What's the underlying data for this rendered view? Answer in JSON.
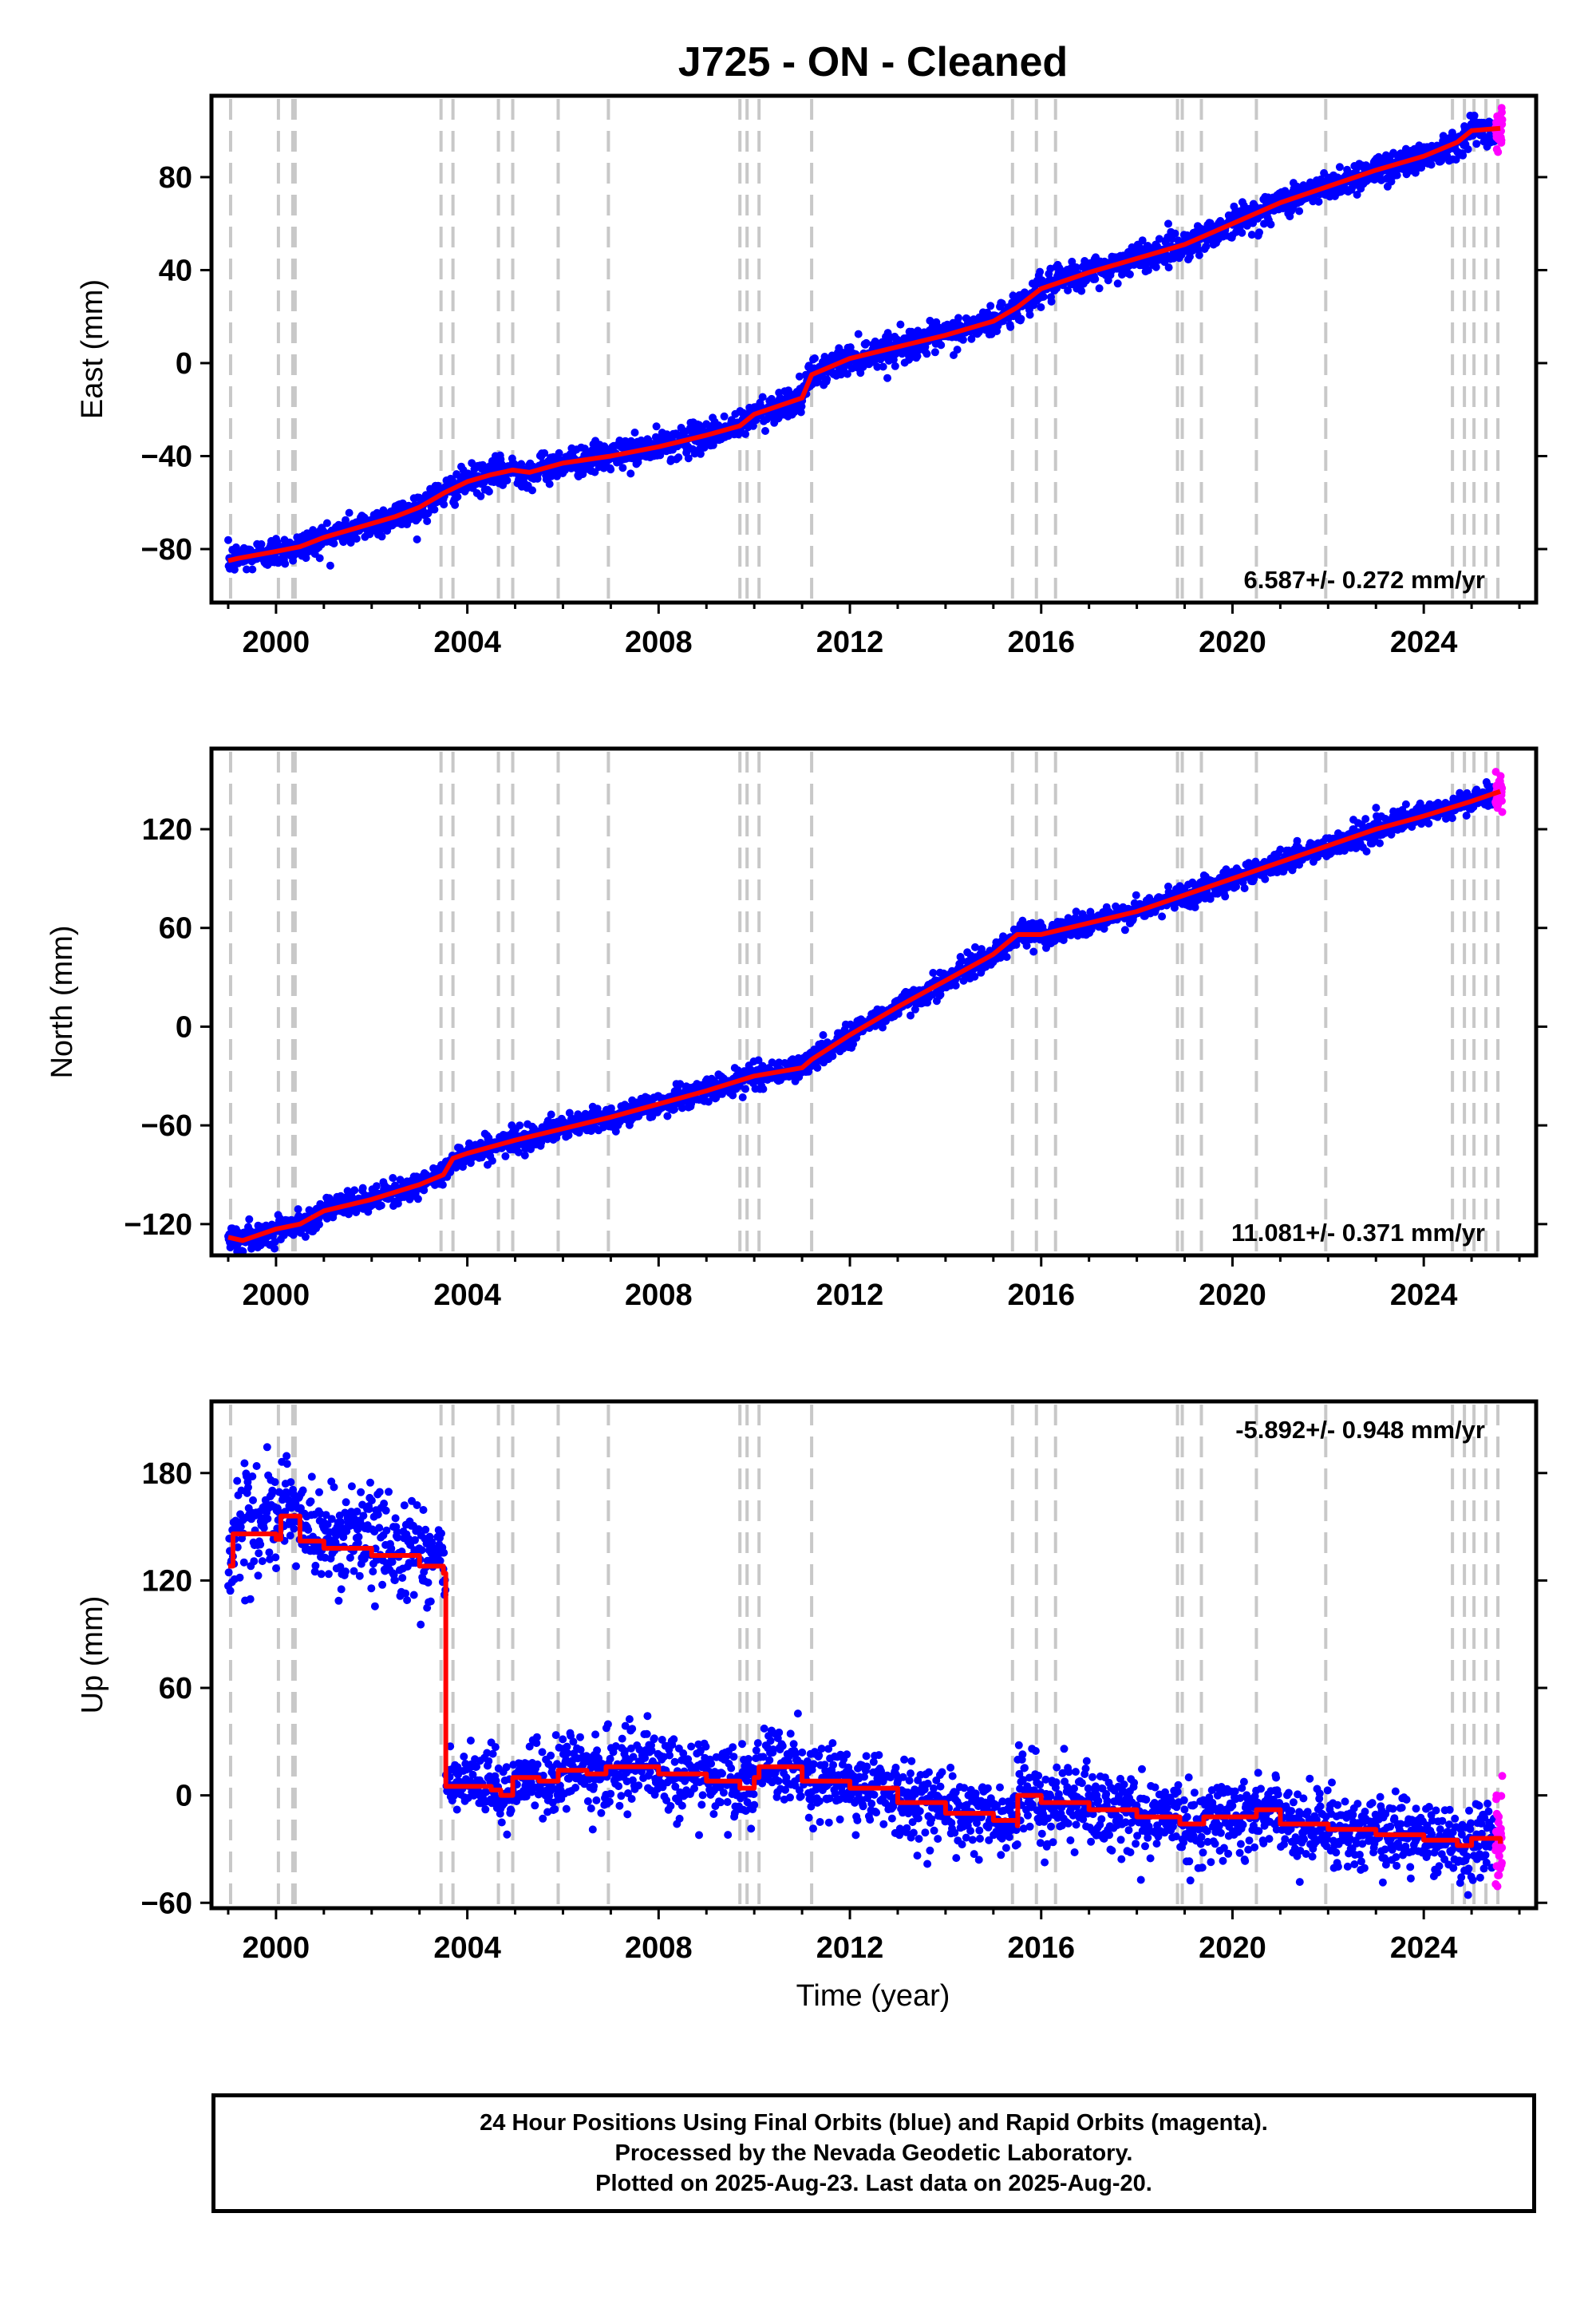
{
  "figure": {
    "title": "J725  - ON - Cleaned",
    "xlabel": "Time (year)"
  },
  "colors": {
    "final_orbits": "#0000ff",
    "rapid_orbits": "#ff00ff",
    "model": "#ff0000",
    "event_lines": "#c8c8c8",
    "frame": "#000000"
  },
  "footer": {
    "line1": "24 Hour Positions Using Final Orbits (blue) and Rapid Orbits (magenta).",
    "line2": "Processed by the Nevada Geodetic Laboratory.",
    "line3": "Plotted on 2025-Aug-23. Last data on 2025-Aug-20."
  },
  "chart_data": [
    {
      "type": "scatter",
      "title": "J725  - ON - Cleaned",
      "xlabel": "",
      "ylabel": "East (mm)",
      "xlim": [
        1998.65,
        2026.35
      ],
      "ylim": [
        -103,
        115
      ],
      "xticks": [
        2000,
        2004,
        2008,
        2012,
        2016,
        2020,
        2024
      ],
      "yticks": [
        -80,
        -40,
        0,
        40,
        80
      ],
      "annotation": "6.587+/- 0.272 mm/yr",
      "annotation_position": "bottom-right",
      "grid": false,
      "series": [
        {
          "name": "Final Orbits",
          "color": "#0000ff",
          "style": "points"
        },
        {
          "name": "Rapid Orbits",
          "color": "#ff00ff",
          "style": "points"
        },
        {
          "name": "Model",
          "color": "#ff0000",
          "style": "line",
          "x": [
            1999.0,
            1999.2,
            2000.0,
            2000.5,
            2001.0,
            2001.5,
            2002.0,
            2002.5,
            2003.0,
            2003.5,
            2004.0,
            2004.5,
            2004.95,
            2005.3,
            2006.0,
            2007.0,
            2008.0,
            2009.0,
            2009.7,
            2010.0,
            2011.0,
            2011.2,
            2012.0,
            2013.0,
            2014.0,
            2015.0,
            2015.5,
            2016.0,
            2017.0,
            2018.0,
            2019.0,
            2020.0,
            2021.0,
            2022.0,
            2023.0,
            2024.0,
            2024.7,
            2025.0,
            2025.6
          ],
          "y": [
            -85,
            -84,
            -81,
            -79,
            -75,
            -72,
            -69,
            -66,
            -62,
            -56,
            -51,
            -48,
            -46,
            -47,
            -43,
            -40,
            -36,
            -31,
            -27,
            -22,
            -15,
            -5,
            2,
            7,
            12,
            18,
            24,
            32,
            39,
            45,
            51,
            60,
            69,
            76,
            83,
            89,
            95,
            100,
            101
          ]
        }
      ]
    },
    {
      "type": "scatter",
      "title": "",
      "xlabel": "",
      "ylabel": "North (mm)",
      "xlim": [
        1998.65,
        2026.35
      ],
      "ylim": [
        -139,
        169
      ],
      "xticks": [
        2000,
        2004,
        2008,
        2012,
        2016,
        2020,
        2024
      ],
      "yticks": [
        -120,
        -60,
        0,
        60,
        120
      ],
      "annotation": "11.081+/- 0.371 mm/yr",
      "annotation_position": "bottom-right",
      "grid": false,
      "series": [
        {
          "name": "Final Orbits",
          "color": "#0000ff",
          "style": "points"
        },
        {
          "name": "Rapid Orbits",
          "color": "#ff00ff",
          "style": "points"
        },
        {
          "name": "Model",
          "color": "#ff0000",
          "style": "line",
          "x": [
            1999.0,
            1999.3,
            2000.0,
            2000.5,
            2001.0,
            2002.0,
            2003.0,
            2003.5,
            2003.7,
            2004.0,
            2005.0,
            2006.0,
            2007.0,
            2008.0,
            2009.0,
            2010.0,
            2011.0,
            2011.2,
            2012.0,
            2013.0,
            2014.0,
            2015.0,
            2015.5,
            2016.0,
            2017.0,
            2018.0,
            2019.0,
            2020.0,
            2021.0,
            2022.0,
            2023.0,
            2024.0,
            2025.0,
            2025.6
          ],
          "y": [
            -128,
            -130,
            -123,
            -120,
            -112,
            -105,
            -96,
            -90,
            -80,
            -77,
            -69,
            -62,
            -55,
            -47,
            -39,
            -30,
            -25,
            -20,
            -5,
            12,
            28,
            44,
            56,
            56,
            63,
            70,
            80,
            90,
            100,
            110,
            120,
            128,
            137,
            143
          ]
        }
      ]
    },
    {
      "type": "scatter",
      "title": "",
      "xlabel": "Time (year)",
      "ylabel": "Up (mm)",
      "xlim": [
        1998.65,
        2026.35
      ],
      "ylim": [
        -63,
        220
      ],
      "xticks": [
        2000,
        2004,
        2008,
        2012,
        2016,
        2020,
        2024
      ],
      "yticks": [
        -60,
        0,
        60,
        120,
        180
      ],
      "annotation": "-5.892+/- 0.948 mm/yr",
      "annotation_position": "top-right",
      "grid": false,
      "series": [
        {
          "name": "Final Orbits",
          "color": "#0000ff",
          "style": "points"
        },
        {
          "name": "Rapid Orbits",
          "color": "#ff00ff",
          "style": "points"
        },
        {
          "name": "Model",
          "color": "#ff0000",
          "style": "step",
          "x": [
            1999.0,
            1999.1,
            2000.0,
            2000.1,
            2000.5,
            2001.0,
            2002.0,
            2003.0,
            2003.5,
            2003.55,
            2003.8,
            2004.0,
            2004.5,
            2004.7,
            2004.95,
            2005.5,
            2005.9,
            2006.5,
            2006.9,
            2008.0,
            2009.0,
            2009.7,
            2010.0,
            2010.1,
            2011.0,
            2012.0,
            2013.0,
            2014.0,
            2015.0,
            2015.5,
            2015.51,
            2016.0,
            2017.0,
            2018.0,
            2018.9,
            2019.4,
            2020.0,
            2020.5,
            2021.0,
            2022.0,
            2023.0,
            2024.0,
            2024.7,
            2025.0,
            2025.6
          ],
          "y": [
            128,
            146,
            143,
            156,
            142,
            138,
            134,
            128,
            124,
            5,
            5,
            5,
            3,
            0,
            10,
            8,
            14,
            12,
            16,
            12,
            8,
            4,
            10,
            16,
            8,
            4,
            -4,
            -10,
            -14,
            -17,
            0,
            -4,
            -8,
            -12,
            -16,
            -12,
            -12,
            -8,
            -16,
            -19,
            -22,
            -25,
            -28,
            -24,
            -27
          ]
        }
      ]
    }
  ],
  "event_lines_years": [
    1999.05,
    2000.05,
    2000.35,
    2000.4,
    2003.45,
    2003.7,
    2004.65,
    2004.95,
    2005.9,
    2006.95,
    2009.7,
    2009.85,
    2010.1,
    2011.2,
    2015.4,
    2015.9,
    2016.3,
    2018.85,
    2018.95,
    2019.35,
    2020.5,
    2021.95,
    2024.6,
    2024.85,
    2025.05,
    2025.3,
    2025.55
  ]
}
